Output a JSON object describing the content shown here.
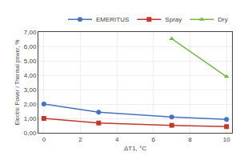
{
  "chart_data": {
    "type": "line",
    "xlabel": "ΔT1, °C",
    "ylabel": "Electric Power / Thermal power, %",
    "series": [
      {
        "name": "EMERITUS",
        "color": "#4472C4",
        "marker": "circle",
        "x": [
          0,
          3,
          7,
          10
        ],
        "values": [
          2.0,
          1.43,
          1.1,
          0.93
        ]
      },
      {
        "name": "Spray",
        "color": "#C0392B",
        "marker": "square",
        "x": [
          0,
          3,
          7,
          10
        ],
        "values": [
          1.0,
          0.68,
          0.52,
          0.43
        ]
      },
      {
        "name": "Dry",
        "color": "#7AB648",
        "marker": "triangle-up",
        "x": [
          7,
          10
        ],
        "values": [
          6.53,
          3.9
        ]
      }
    ],
    "xlim": [
      -0.3,
      10.3
    ],
    "ylim": [
      0.0,
      7.0
    ],
    "xticks": [
      0,
      2,
      4,
      6,
      8,
      10
    ],
    "yticks": [
      {
        "value": 0,
        "label": "0,00"
      },
      {
        "value": 1,
        "label": "1,00"
      },
      {
        "value": 2,
        "label": "2,00"
      },
      {
        "value": 3,
        "label": "3,00"
      },
      {
        "value": 4,
        "label": "4,00"
      },
      {
        "value": 5,
        "label": "5,00"
      },
      {
        "value": 6,
        "label": "6,00"
      },
      {
        "value": 7,
        "label": "7,00"
      }
    ],
    "grid": true,
    "legend": "upper right"
  }
}
